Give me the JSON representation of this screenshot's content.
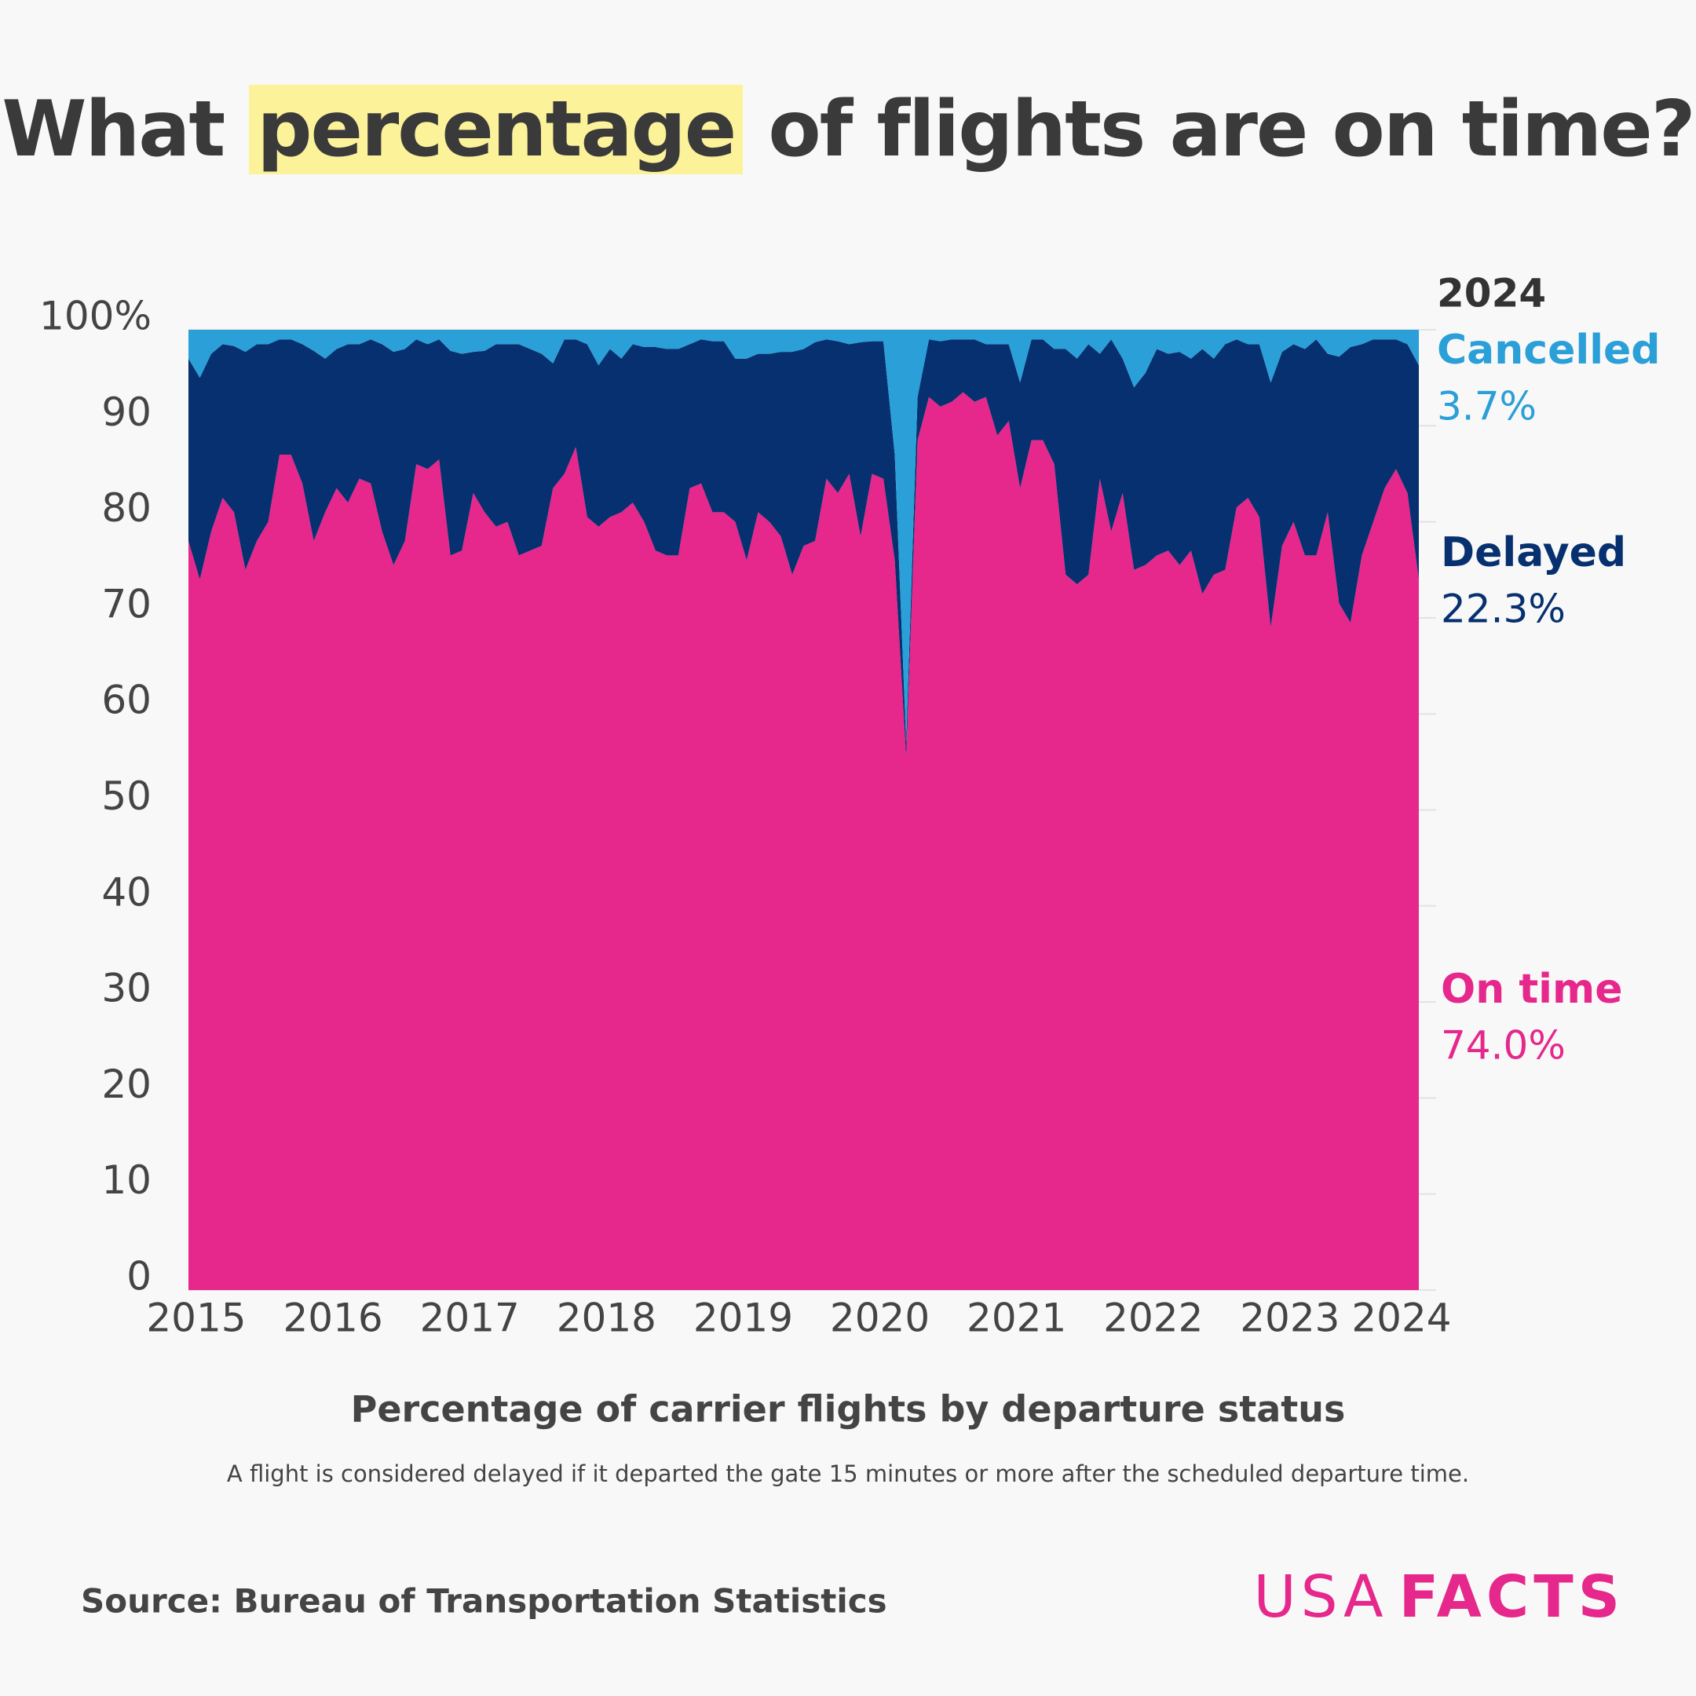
{
  "chart_data": {
    "type": "stacked-area",
    "title": {
      "before": "What",
      "highlight": "percentage",
      "after": "of flights are on time?"
    },
    "subtitle": "Percentage of carrier flights by departure status",
    "note": "A flight is considered delayed if it departed the gate 15 minutes or more after the scheduled departure time.",
    "source": "Source: Bureau of Transportation Statistics",
    "logo": {
      "light": "USA",
      "bold": "FACTS"
    },
    "categories": [
      "2015",
      null,
      null,
      null,
      null,
      null,
      null,
      null,
      null,
      null,
      null,
      null,
      "2016",
      null,
      null,
      null,
      null,
      null,
      null,
      null,
      null,
      null,
      null,
      null,
      "2017",
      null,
      null,
      null,
      null,
      null,
      null,
      null,
      null,
      null,
      null,
      null,
      "2018",
      null,
      null,
      null,
      null,
      null,
      null,
      null,
      null,
      null,
      null,
      null,
      "2019",
      null,
      null,
      null,
      null,
      null,
      null,
      null,
      null,
      null,
      null,
      null,
      "2020",
      null,
      null,
      null,
      null,
      null,
      null,
      null,
      null,
      null,
      null,
      null,
      "2021",
      null,
      null,
      null,
      null,
      null,
      null,
      null,
      null,
      null,
      null,
      null,
      "2022",
      null,
      null,
      null,
      null,
      null,
      null,
      null,
      null,
      null,
      null,
      null,
      "2023",
      null,
      null,
      null,
      null,
      null,
      null,
      null,
      null,
      null,
      null,
      null,
      "2024"
    ],
    "series": [
      {
        "name": "On time",
        "color": "#e6278b",
        "value_labels": {
          "108": "74.0%"
        },
        "values": [
          78,
          74,
          79,
          82.5,
          81,
          75,
          78,
          80,
          87,
          87,
          84,
          78,
          81,
          83.5,
          82,
          84.5,
          84,
          79,
          75.5,
          78,
          86,
          85.5,
          86.5,
          76.5,
          77,
          83,
          81,
          79.5,
          80,
          76.5,
          77,
          77.5,
          83.5,
          85,
          87.8,
          80.5,
          79.5,
          80.5,
          81,
          82,
          80,
          77,
          76.5,
          76.5,
          83.5,
          84,
          81,
          81,
          80,
          76,
          81,
          80,
          78.5,
          74.5,
          77.5,
          78,
          84.5,
          83,
          85,
          78.5,
          85,
          84.5,
          76,
          55.5,
          88.5,
          93,
          92,
          92.5,
          93.5,
          92.5,
          93,
          89,
          90.5,
          83.5,
          88.5,
          88.5,
          86,
          74.5,
          73.5,
          74.5,
          84.5,
          79,
          83,
          75,
          75.5,
          76.5,
          77,
          75.5,
          77,
          72.5,
          74.5,
          75,
          81.5,
          82.5,
          80.5,
          69,
          77.5,
          80,
          76.5,
          76.5,
          81,
          71.5,
          69.5,
          76.5,
          80,
          83.5,
          85.5,
          83,
          74
        ]
      },
      {
        "name": "Delayed",
        "color": "#06306f",
        "value_labels": {
          "108": "22.3%"
        },
        "values": [
          19,
          21,
          18.5,
          16,
          17.3,
          22.7,
          20.5,
          18.5,
          12,
          12,
          14.5,
          19.8,
          16,
          14.5,
          16.5,
          14,
          15,
          19.5,
          22.2,
          20,
          13,
          13,
          12.5,
          21.3,
          20.5,
          14.7,
          16.8,
          19,
          18.5,
          22,
          21,
          20,
          13,
          14,
          11.2,
          18,
          16.8,
          17.5,
          16,
          16.5,
          18.2,
          21.2,
          21.5,
          21.5,
          15,
          15,
          17.8,
          17.8,
          17,
          21,
          16.5,
          17.5,
          19.2,
          23.2,
          20.5,
          20.7,
          14.5,
          15.8,
          13.5,
          20.2,
          13.8,
          14.3,
          11,
          1.5,
          4.5,
          6,
          6.8,
          6.5,
          5.5,
          6.5,
          5.5,
          9.5,
          8,
          11,
          10.5,
          10.5,
          12,
          23.5,
          23.5,
          24,
          13,
          20,
          14,
          19,
          20,
          21.5,
          20.5,
          22.2,
          20,
          25.5,
          22.5,
          23.5,
          17.5,
          16,
          18,
          25.5,
          20.2,
          18.5,
          21.5,
          22.5,
          16.5,
          25.7,
          28.7,
          22,
          19,
          15.5,
          13.5,
          15.5,
          22.3
        ]
      },
      {
        "name": "Cancelled",
        "color": "#2a9fd8",
        "value_labels": {
          "108": "3.7%"
        },
        "values": [
          3,
          5,
          2.5,
          1.5,
          1.7,
          2.3,
          1.5,
          1.5,
          1,
          1,
          1.5,
          2.2,
          3,
          2,
          1.5,
          1.5,
          1,
          1.5,
          2.3,
          2,
          1,
          1.5,
          1,
          2.2,
          2.5,
          2.3,
          2.2,
          1.5,
          1.5,
          1.5,
          2,
          2.5,
          3.5,
          1,
          1,
          1.5,
          3.7,
          2,
          3,
          1.5,
          1.8,
          1.8,
          2,
          2,
          1.5,
          1,
          1.2,
          1.2,
          3,
          3,
          2.5,
          2.5,
          2.3,
          2.3,
          2,
          1.3,
          1,
          1.2,
          1.5,
          1.3,
          1.2,
          1.2,
          13,
          43,
          7,
          1,
          1.2,
          1,
          1,
          1,
          1.5,
          1.5,
          1.5,
          5.5,
          1,
          1,
          2,
          2,
          3,
          1.5,
          2.5,
          1,
          3,
          6,
          4.5,
          2,
          2.5,
          2.3,
          3,
          2,
          3,
          1.5,
          1,
          1.5,
          1.5,
          5.5,
          2.3,
          1.5,
          2,
          1,
          2.5,
          2.8,
          1.8,
          1.5,
          1,
          1,
          1,
          1.5,
          3.7
        ]
      }
    ],
    "ylim": [
      0,
      100
    ],
    "yticks": [
      0,
      10,
      20,
      30,
      40,
      50,
      60,
      70,
      80,
      90,
      {
        "value": 100,
        "label": "100%"
      }
    ],
    "grid": true
  }
}
